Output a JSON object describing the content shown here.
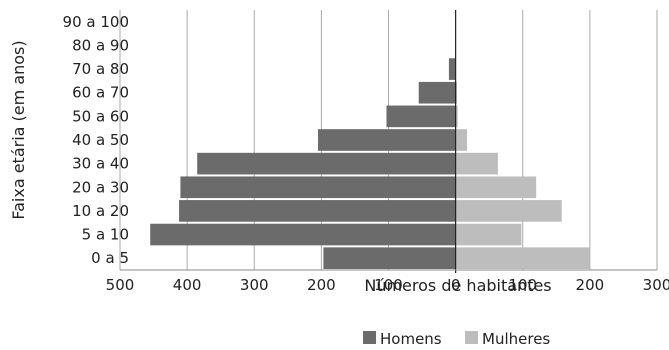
{
  "chart_data": {
    "type": "bar",
    "orientation": "horizontal",
    "categories": [
      "0 a 5",
      "5 a 10",
      "10 a 20",
      "20 a 30",
      "30 a 40",
      "40 a 50",
      "50 a 60",
      "60 a 70",
      "70 a 80",
      "80 a 90",
      "90 a 100"
    ],
    "series": [
      {
        "name": "Homens",
        "values": [
          -197,
          -455,
          -412,
          -410,
          -385,
          -205,
          -103,
          -55,
          -10,
          0,
          0
        ],
        "color": "#6b6b6b"
      },
      {
        "name": "Mulheres",
        "values": [
          200,
          98,
          158,
          120,
          63,
          17,
          3,
          2,
          0,
          0,
          0
        ],
        "color": "#bdbdbd"
      }
    ],
    "xlabel": "Números de habitantes",
    "ylabel": "Faixa etária (em anos)",
    "xlim": [
      -500,
      300
    ],
    "xticks": [
      -500,
      -400,
      -300,
      -200,
      -100,
      0,
      100,
      200,
      300
    ],
    "xtick_labels": [
      "500",
      "400",
      "300",
      "200",
      "100",
      "0",
      "100",
      "200",
      "300"
    ],
    "grid": "vertical",
    "legend_position": "bottom"
  }
}
